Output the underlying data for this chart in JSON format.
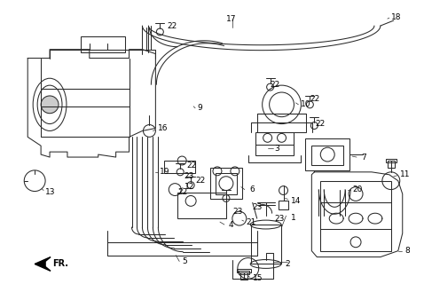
{
  "bg_color": "#ffffff",
  "line_color": "#2a2a2a",
  "lw": 0.75,
  "label_fontsize": 6.0,
  "fig_width": 4.78,
  "fig_height": 3.2,
  "dpi": 100
}
